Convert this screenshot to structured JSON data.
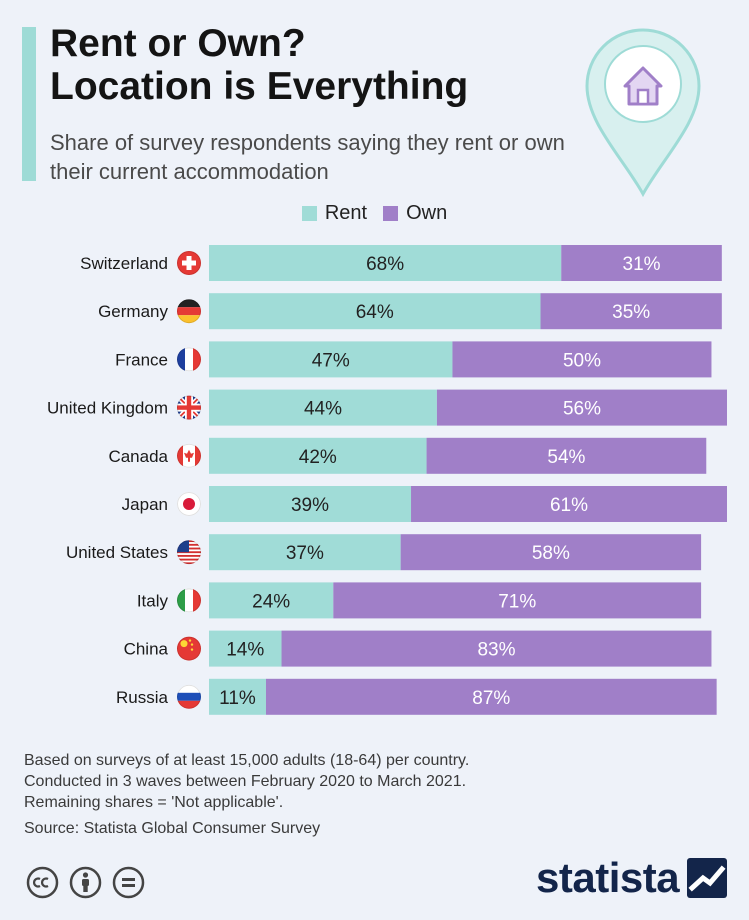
{
  "header": {
    "title_line1": "Rent or Own?",
    "title_line2": "Location is Everything",
    "subtitle": "Share of survey respondents saying they rent or own their current accommodation"
  },
  "legend": {
    "rent_label": "Rent",
    "own_label": "Own"
  },
  "colors": {
    "rent": "#a0dcd7",
    "own": "#a07fc8",
    "accent": "#9edbd6",
    "brand": "#13254a"
  },
  "chart_data": {
    "type": "bar",
    "orientation": "horizontal",
    "stacked": true,
    "title": "Rent or Own? Location is Everything",
    "subtitle": "Share of survey respondents saying they rent or own their current accommodation",
    "categories": [
      "Switzerland",
      "Germany",
      "France",
      "United Kingdom",
      "Canada",
      "Japan",
      "United States",
      "Italy",
      "China",
      "Russia"
    ],
    "flags": [
      "swiss-flag-icon",
      "german-flag-icon",
      "french-flag-icon",
      "uk-flag-icon",
      "canadian-flag-icon",
      "japanese-flag-icon",
      "us-flag-icon",
      "italian-flag-icon",
      "chinese-flag-icon",
      "russian-flag-icon"
    ],
    "series": [
      {
        "name": "Rent",
        "values": [
          68,
          64,
          47,
          44,
          42,
          39,
          37,
          24,
          14,
          11
        ],
        "labels": [
          "68%",
          "64%",
          "47%",
          "44%",
          "42%",
          "39%",
          "37%",
          "24%",
          "14%",
          "11%"
        ]
      },
      {
        "name": "Own",
        "values": [
          31,
          35,
          50,
          56,
          54,
          61,
          58,
          71,
          83,
          87
        ],
        "labels": [
          "31%",
          "35%",
          "50%",
          "56%",
          "54%",
          "61%",
          "58%",
          "71%",
          "83%",
          "87%"
        ]
      }
    ],
    "xlim": [
      0,
      100
    ],
    "legend_position": "top-center"
  },
  "footnote": {
    "lines": [
      "Based on surveys of at least 15,000 adults (18-64) per country.",
      "Conducted in 3 waves between February 2020 to March 2021.",
      "Remaining shares = 'Not applicable'."
    ],
    "source": "Source: Statista Global Consumer Survey"
  },
  "brand": {
    "name": "statista"
  }
}
